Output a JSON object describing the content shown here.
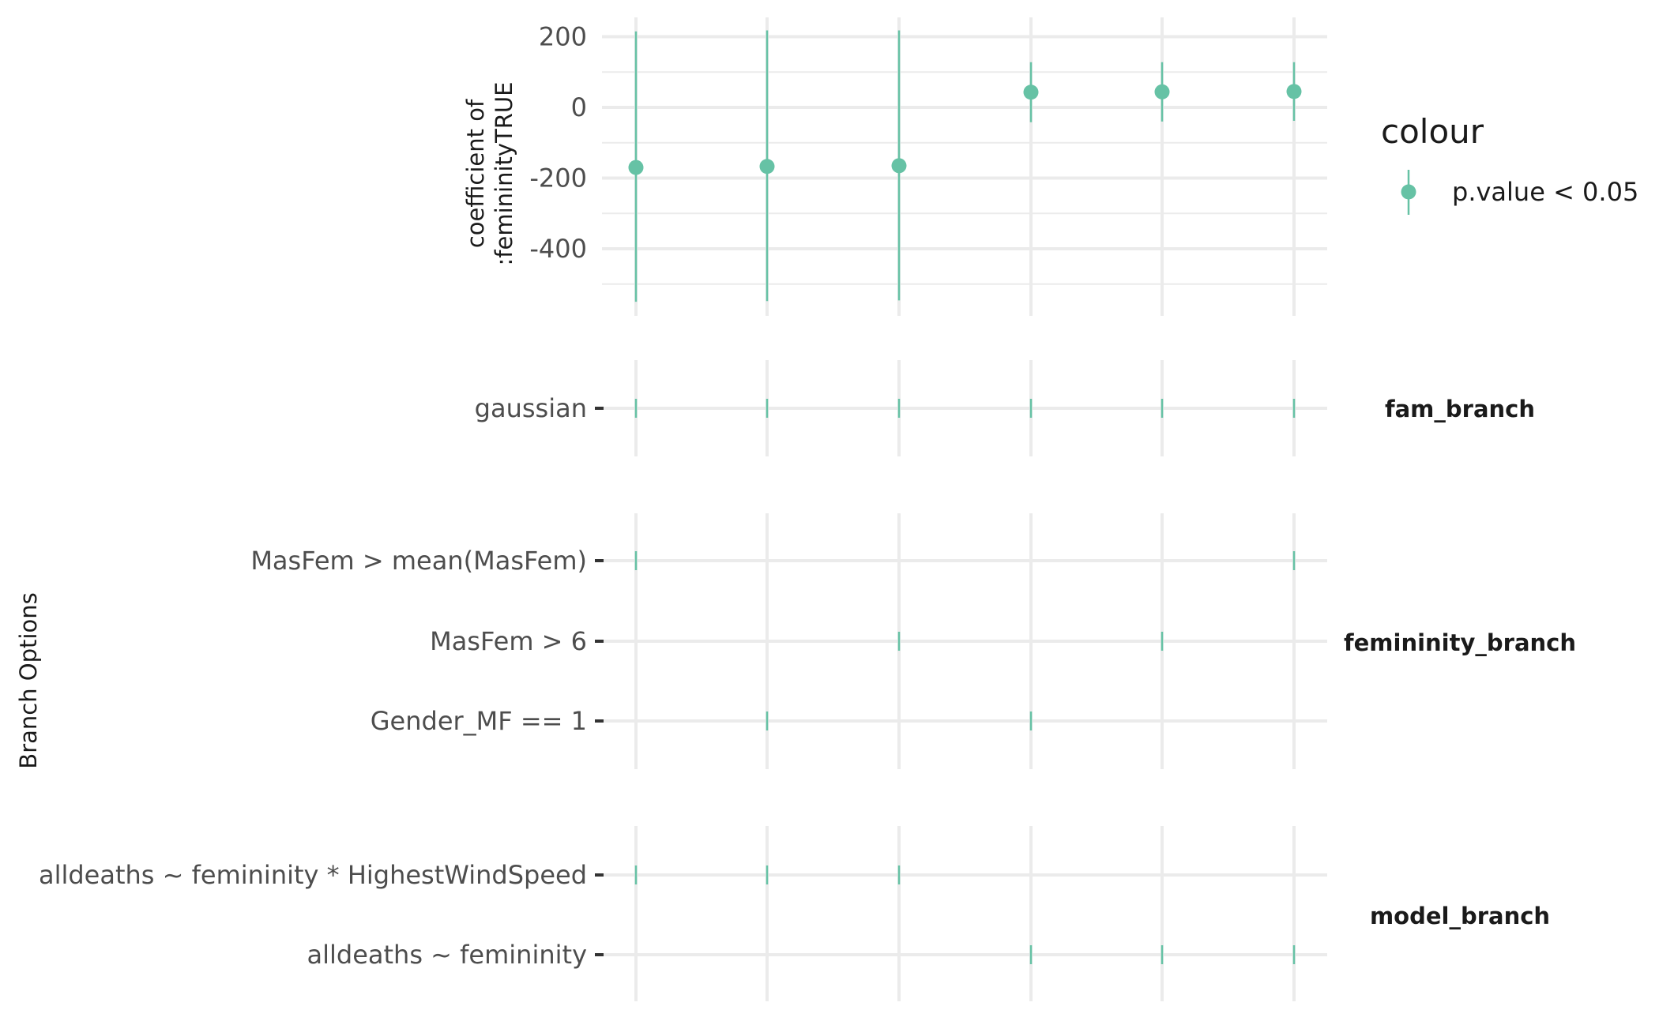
{
  "chart_data": {
    "type": "scatter",
    "point_color": "#66c2a5",
    "top_panel": {
      "ylabel_lines": [
        "coefficient of",
        ":femininityTRUE"
      ],
      "ylim": [
        -550,
        250
      ],
      "yticks": [
        200,
        0,
        -200,
        -400
      ],
      "ytick_labels": [
        "200",
        "0",
        "-200",
        "-400"
      ],
      "universes": [
        {
          "estimate": -170,
          "conf_low": -550,
          "conf_high": 215
        },
        {
          "estimate": -167,
          "conf_low": -548,
          "conf_high": 218
        },
        {
          "estimate": -165,
          "conf_low": -546,
          "conf_high": 218
        },
        {
          "estimate": 43,
          "conf_low": -42,
          "conf_high": 128
        },
        {
          "estimate": 44,
          "conf_low": -40,
          "conf_high": 128
        },
        {
          "estimate": 45,
          "conf_low": -38,
          "conf_high": 128
        }
      ]
    },
    "legend": {
      "title": "colour",
      "items": [
        {
          "label": "p.value < 0.05",
          "color": "#66c2a5"
        }
      ]
    },
    "branch_ylabel": "Branch Options",
    "branch_panels": [
      {
        "name": "fam_branch",
        "options": [
          {
            "label": "gaussian",
            "universes": [
              0,
              1,
              2,
              3,
              4,
              5
            ]
          }
        ]
      },
      {
        "name": "femininity_branch",
        "options": [
          {
            "label": "MasFem > mean(MasFem)",
            "universes": [
              0,
              5
            ]
          },
          {
            "label": "MasFem > 6",
            "universes": [
              2,
              4
            ]
          },
          {
            "label": "Gender_MF == 1",
            "universes": [
              1,
              3
            ]
          }
        ]
      },
      {
        "name": "model_branch",
        "options": [
          {
            "label": "alldeaths ~ femininity * HighestWindSpeed",
            "universes": [
              0,
              1,
              2
            ]
          },
          {
            "label": "alldeaths ~ femininity",
            "universes": [
              3,
              4,
              5
            ]
          }
        ]
      }
    ]
  }
}
